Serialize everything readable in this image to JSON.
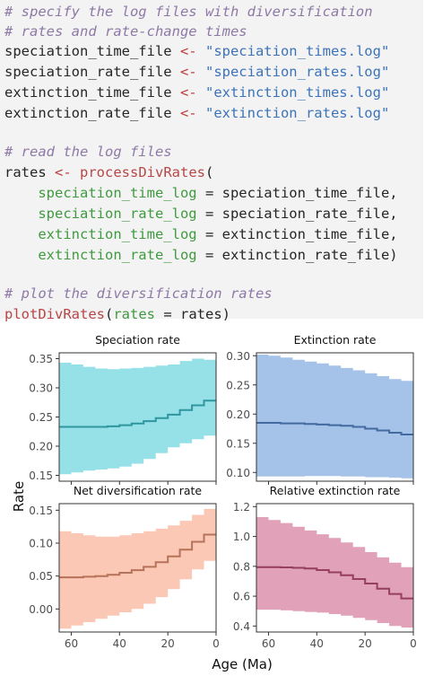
{
  "code": {
    "lines": [
      [
        {
          "t": "# specify the log files with diversification",
          "c": "cm"
        }
      ],
      [
        {
          "t": "# rates and rate-change times",
          "c": "cm"
        }
      ],
      [
        {
          "t": "speciation_time_file ",
          "c": "tx"
        },
        {
          "t": "<-",
          "c": "op"
        },
        {
          "t": " ",
          "c": "tx"
        },
        {
          "t": "\"speciation_times.log\"",
          "c": "st"
        }
      ],
      [
        {
          "t": "speciation_rate_file ",
          "c": "tx"
        },
        {
          "t": "<-",
          "c": "op"
        },
        {
          "t": " ",
          "c": "tx"
        },
        {
          "t": "\"speciation_rates.log\"",
          "c": "st"
        }
      ],
      [
        {
          "t": "extinction_time_file ",
          "c": "tx"
        },
        {
          "t": "<-",
          "c": "op"
        },
        {
          "t": " ",
          "c": "tx"
        },
        {
          "t": "\"extinction_times.log\"",
          "c": "st"
        }
      ],
      [
        {
          "t": "extinction_rate_file ",
          "c": "tx"
        },
        {
          "t": "<-",
          "c": "op"
        },
        {
          "t": " ",
          "c": "tx"
        },
        {
          "t": "\"extinction_rates.log\"",
          "c": "st"
        }
      ],
      [],
      [
        {
          "t": "# read the log files",
          "c": "cm"
        }
      ],
      [
        {
          "t": "rates ",
          "c": "tx"
        },
        {
          "t": "<-",
          "c": "op"
        },
        {
          "t": " ",
          "c": "tx"
        },
        {
          "t": "processDivRates",
          "c": "fn"
        },
        {
          "t": "(",
          "c": "tx"
        }
      ],
      [
        {
          "t": "    ",
          "c": "tx"
        },
        {
          "t": "speciation_time_log",
          "c": "ar"
        },
        {
          "t": " = speciation_time_file,",
          "c": "tx"
        }
      ],
      [
        {
          "t": "    ",
          "c": "tx"
        },
        {
          "t": "speciation_rate_log",
          "c": "ar"
        },
        {
          "t": " = speciation_rate_file,",
          "c": "tx"
        }
      ],
      [
        {
          "t": "    ",
          "c": "tx"
        },
        {
          "t": "extinction_time_log",
          "c": "ar"
        },
        {
          "t": " = extinction_time_file,",
          "c": "tx"
        }
      ],
      [
        {
          "t": "    ",
          "c": "tx"
        },
        {
          "t": "extinction_rate_log",
          "c": "ar"
        },
        {
          "t": " = extinction_rate_file)",
          "c": "tx"
        }
      ],
      [],
      [
        {
          "t": "# plot the diversification rates",
          "c": "cm"
        }
      ],
      [
        {
          "t": "plotDivRates",
          "c": "fn"
        },
        {
          "t": "(",
          "c": "tx"
        },
        {
          "t": "rates",
          "c": "ar"
        },
        {
          "t": " = rates)",
          "c": "tx"
        }
      ]
    ]
  },
  "figure": {
    "xlabel": "Age (Ma)",
    "ylabel": "Rate"
  },
  "chart_data": [
    {
      "type": "area",
      "title": "Speciation rate",
      "color": "#40c8d4",
      "xlim": [
        65,
        0
      ],
      "ylim": [
        0.14,
        0.36
      ],
      "yticks": [
        0.15,
        0.2,
        0.25,
        0.3,
        0.35
      ],
      "yticklabels": [
        "0.15",
        "0.20",
        "0.25",
        "0.30",
        "0.35"
      ],
      "xticks": [
        60,
        40,
        20,
        0
      ],
      "xticklabels": [
        "60",
        "40",
        "20",
        "0"
      ],
      "x": [
        65,
        60,
        55,
        50,
        45,
        40,
        35,
        30,
        25,
        20,
        15,
        10,
        5,
        0
      ],
      "median": [
        0.233,
        0.233,
        0.233,
        0.233,
        0.234,
        0.236,
        0.239,
        0.243,
        0.248,
        0.254,
        0.262,
        0.27,
        0.278,
        0.278
      ],
      "lower": [
        0.152,
        0.155,
        0.158,
        0.16,
        0.162,
        0.165,
        0.17,
        0.178,
        0.188,
        0.198,
        0.205,
        0.212,
        0.218,
        0.218
      ],
      "upper": [
        0.343,
        0.34,
        0.336,
        0.333,
        0.332,
        0.333,
        0.334,
        0.336,
        0.338,
        0.34,
        0.346,
        0.35,
        0.348,
        0.348
      ]
    },
    {
      "type": "area",
      "title": "Extinction rate",
      "color": "#5b8fd6",
      "xlim": [
        65,
        0
      ],
      "ylim": [
        0.085,
        0.305
      ],
      "yticks": [
        0.1,
        0.15,
        0.2,
        0.25,
        0.3
      ],
      "yticklabels": [
        "0.10",
        "0.15",
        "0.20",
        "0.25",
        "0.30"
      ],
      "xticks": [
        60,
        40,
        20,
        0
      ],
      "xticklabels": [
        "60",
        "40",
        "20",
        "0"
      ],
      "x": [
        65,
        60,
        55,
        50,
        45,
        40,
        35,
        30,
        25,
        20,
        15,
        10,
        5,
        0
      ],
      "median": [
        0.185,
        0.185,
        0.184,
        0.184,
        0.183,
        0.182,
        0.181,
        0.18,
        0.178,
        0.175,
        0.172,
        0.168,
        0.165,
        0.165
      ],
      "lower": [
        0.093,
        0.093,
        0.093,
        0.093,
        0.094,
        0.094,
        0.094,
        0.093,
        0.093,
        0.092,
        0.092,
        0.091,
        0.09,
        0.09
      ],
      "upper": [
        0.302,
        0.3,
        0.297,
        0.293,
        0.29,
        0.287,
        0.283,
        0.279,
        0.275,
        0.27,
        0.265,
        0.26,
        0.257,
        0.257
      ]
    },
    {
      "type": "area",
      "title": "Net diversification rate",
      "color": "#f59a78",
      "xlim": [
        65,
        0
      ],
      "ylim": [
        -0.035,
        0.16
      ],
      "yticks": [
        0.0,
        0.05,
        0.1,
        0.15
      ],
      "yticklabels": [
        "0.00",
        "0.05",
        "0.10",
        "0.15"
      ],
      "xticks": [
        60,
        40,
        20,
        0
      ],
      "xticklabels": [
        "60",
        "40",
        "20",
        "0"
      ],
      "x": [
        65,
        60,
        55,
        50,
        45,
        40,
        35,
        30,
        25,
        20,
        15,
        10,
        5,
        0
      ],
      "median": [
        0.048,
        0.048,
        0.049,
        0.05,
        0.052,
        0.055,
        0.059,
        0.064,
        0.071,
        0.08,
        0.09,
        0.102,
        0.113,
        0.113
      ],
      "lower": [
        -0.03,
        -0.025,
        -0.02,
        -0.015,
        -0.01,
        -0.005,
        0.0,
        0.008,
        0.018,
        0.03,
        0.045,
        0.06,
        0.073,
        0.073
      ],
      "upper": [
        0.118,
        0.115,
        0.112,
        0.11,
        0.11,
        0.112,
        0.115,
        0.118,
        0.122,
        0.127,
        0.134,
        0.143,
        0.152,
        0.152
      ]
    },
    {
      "type": "area",
      "title": "Relative extinction rate",
      "color": "#c8557f",
      "xlim": [
        65,
        0
      ],
      "ylim": [
        0.36,
        1.22
      ],
      "yticks": [
        0.4,
        0.6,
        0.8,
        1.0,
        1.2
      ],
      "yticklabels": [
        "0.4",
        "0.6",
        "0.8",
        "1.0",
        "1.2"
      ],
      "xticks": [
        60,
        40,
        20,
        0
      ],
      "xticklabels": [
        "60",
        "40",
        "20",
        "0"
      ],
      "x": [
        65,
        60,
        55,
        50,
        45,
        40,
        35,
        30,
        25,
        20,
        15,
        10,
        5,
        0
      ],
      "median": [
        0.795,
        0.795,
        0.793,
        0.79,
        0.785,
        0.775,
        0.76,
        0.74,
        0.715,
        0.685,
        0.65,
        0.615,
        0.585,
        0.585
      ],
      "lower": [
        0.51,
        0.51,
        0.505,
        0.5,
        0.495,
        0.49,
        0.48,
        0.47,
        0.455,
        0.44,
        0.42,
        0.4,
        0.39,
        0.39
      ],
      "upper": [
        1.13,
        1.11,
        1.09,
        1.065,
        1.04,
        1.015,
        0.99,
        0.96,
        0.93,
        0.895,
        0.86,
        0.825,
        0.795,
        0.795
      ]
    }
  ]
}
